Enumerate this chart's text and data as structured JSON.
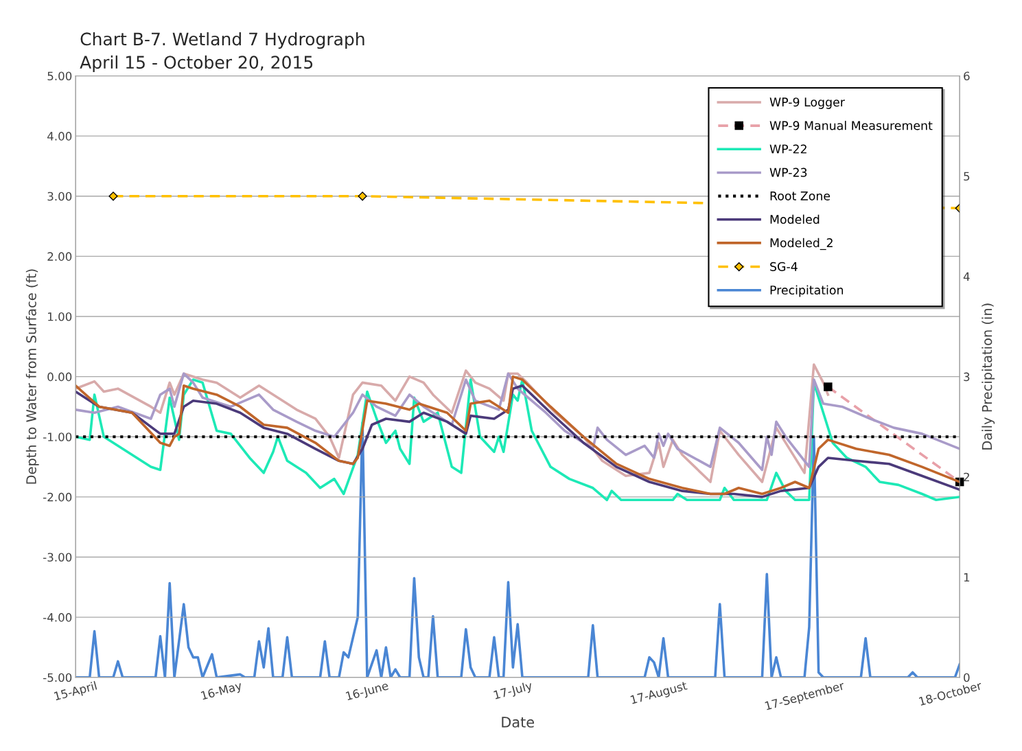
{
  "chart_data": {
    "type": "line",
    "title": "Chart B-7. Wetland 7 Hydrograph",
    "subtitle": "April 15 - October 20, 2015",
    "xlabel": "Date",
    "ylabel": "Depth to Water from Surface (ft)",
    "y2label": "Daily Precipitation (in)",
    "xlim": [
      "2015-04-15",
      "2015-10-20"
    ],
    "xticks": [
      {
        "value": "2015-04-15",
        "label": "15-April"
      },
      {
        "value": "2015-05-16",
        "label": "16-May"
      },
      {
        "value": "2015-06-16",
        "label": "16-June"
      },
      {
        "value": "2015-07-17",
        "label": "17-July"
      },
      {
        "value": "2015-08-17",
        "label": "17-August"
      },
      {
        "value": "2015-09-17",
        "label": "17-September"
      },
      {
        "value": "2015-10-18",
        "label": "18-October"
      }
    ],
    "ylim": [
      -5,
      5
    ],
    "yticks": [
      {
        "value": -5,
        "label": "-5.00"
      },
      {
        "value": -4,
        "label": "-4.00"
      },
      {
        "value": -3,
        "label": "-3.00"
      },
      {
        "value": -2,
        "label": "-2.00"
      },
      {
        "value": -1,
        "label": "-1.00"
      },
      {
        "value": 0,
        "label": "0.00"
      },
      {
        "value": 1,
        "label": "1.00"
      },
      {
        "value": 2,
        "label": "2.00"
      },
      {
        "value": 3,
        "label": "3.00"
      },
      {
        "value": 4,
        "label": "4.00"
      },
      {
        "value": 5,
        "label": "5.00"
      }
    ],
    "y2lim": [
      0,
      6
    ],
    "y2ticks": [
      0,
      1,
      2,
      3,
      4,
      5,
      6
    ],
    "grid": "y",
    "legend": "top right",
    "series": [
      {
        "name": "WP-9 Logger",
        "color": "#d8aaaa",
        "x": [
          "2015-04-15",
          "2015-04-19",
          "2015-04-21",
          "2015-04-24",
          "2015-05-01",
          "2015-05-03",
          "2015-05-05",
          "2015-05-06",
          "2015-05-08",
          "2015-05-12",
          "2015-05-15",
          "2015-05-20",
          "2015-05-24",
          "2015-05-28",
          "2015-06-01",
          "2015-06-05",
          "2015-06-08",
          "2015-06-10",
          "2015-06-13",
          "2015-06-15",
          "2015-06-19",
          "2015-06-22",
          "2015-06-25",
          "2015-06-28",
          "2015-06-30",
          "2015-07-04",
          "2015-07-07",
          "2015-07-09",
          "2015-07-12",
          "2015-07-15",
          "2015-07-16",
          "2015-07-18",
          "2015-07-20",
          "2015-07-26",
          "2015-08-01",
          "2015-08-05",
          "2015-08-10",
          "2015-08-15",
          "2015-08-17",
          "2015-08-18",
          "2015-08-20",
          "2015-08-22",
          "2015-08-28",
          "2015-08-30",
          "2015-09-03",
          "2015-09-08",
          "2015-09-11",
          "2015-09-17",
          "2015-09-19",
          "2015-09-21",
          "2015-09-22"
        ],
        "values": [
          -0.2,
          -0.08,
          -0.25,
          -0.2,
          -0.5,
          -0.6,
          -0.1,
          -0.3,
          0.05,
          -0.05,
          -0.1,
          -0.35,
          -0.15,
          -0.35,
          -0.55,
          -0.7,
          -1.0,
          -1.35,
          -0.3,
          -0.1,
          -0.15,
          -0.4,
          0.0,
          -0.1,
          -0.3,
          -0.6,
          0.1,
          -0.1,
          -0.2,
          -0.4,
          0.05,
          0.05,
          -0.1,
          -0.6,
          -1.0,
          -1.4,
          -1.65,
          -1.6,
          -1.1,
          -1.5,
          -1.05,
          -1.3,
          -1.75,
          -0.9,
          -1.3,
          -1.75,
          -0.85,
          -1.6,
          0.2,
          -0.1,
          -0.3
        ]
      },
      {
        "name": "WP-9 Manual Measurement",
        "color": "#e8a0a8",
        "marker": "square",
        "line_style": "dashed",
        "x": [
          "2015-09-22",
          "2015-10-20"
        ],
        "values": [
          -0.17,
          -1.75
        ]
      },
      {
        "name": "WP-22",
        "color": "#1de9b6",
        "x": [
          "2015-04-15",
          "2015-04-18",
          "2015-04-19",
          "2015-04-21",
          "2015-04-23",
          "2015-04-25",
          "2015-05-01",
          "2015-05-03",
          "2015-05-05",
          "2015-05-06",
          "2015-05-07",
          "2015-05-08",
          "2015-05-10",
          "2015-05-12",
          "2015-05-15",
          "2015-05-18",
          "2015-05-22",
          "2015-05-25",
          "2015-05-27",
          "2015-05-28",
          "2015-05-30",
          "2015-06-03",
          "2015-06-06",
          "2015-06-09",
          "2015-06-11",
          "2015-06-14",
          "2015-06-16",
          "2015-06-18",
          "2015-06-20",
          "2015-06-22",
          "2015-06-23",
          "2015-06-25",
          "2015-06-26",
          "2015-06-28",
          "2015-07-01",
          "2015-07-04",
          "2015-07-06",
          "2015-07-08",
          "2015-07-10",
          "2015-07-13",
          "2015-07-14",
          "2015-07-15",
          "2015-07-17",
          "2015-07-18",
          "2015-07-19",
          "2015-07-21",
          "2015-07-25",
          "2015-07-29",
          "2015-08-03",
          "2015-08-06",
          "2015-08-07",
          "2015-08-09",
          "2015-08-20",
          "2015-08-21",
          "2015-08-23",
          "2015-08-30",
          "2015-08-31",
          "2015-09-02",
          "2015-09-09",
          "2015-09-11",
          "2015-09-13",
          "2015-09-15",
          "2015-09-18",
          "2015-09-19",
          "2015-09-21",
          "2015-09-23",
          "2015-09-26",
          "2015-09-30",
          "2015-10-03",
          "2015-10-07",
          "2015-10-12",
          "2015-10-15",
          "2015-10-20"
        ],
        "values": [
          -1.0,
          -1.05,
          -0.3,
          -1.0,
          -1.1,
          -1.2,
          -1.5,
          -1.55,
          -0.35,
          -0.7,
          -1.05,
          -0.3,
          -0.05,
          -0.1,
          -0.9,
          -0.95,
          -1.35,
          -1.6,
          -1.25,
          -1.0,
          -1.4,
          -1.6,
          -1.85,
          -1.7,
          -1.95,
          -1.3,
          -0.25,
          -0.7,
          -1.1,
          -0.9,
          -1.2,
          -1.45,
          -0.35,
          -0.75,
          -0.6,
          -1.5,
          -1.6,
          -0.05,
          -1.0,
          -1.25,
          -1.0,
          -1.25,
          -0.3,
          -0.4,
          -0.05,
          -0.9,
          -1.5,
          -1.7,
          -1.85,
          -2.05,
          -1.9,
          -2.05,
          -2.05,
          -1.95,
          -2.05,
          -2.05,
          -1.85,
          -2.05,
          -2.05,
          -1.6,
          -1.9,
          -2.05,
          -2.05,
          -0.1,
          -0.6,
          -1.1,
          -1.35,
          -1.5,
          -1.75,
          -1.8,
          -1.95,
          -2.05,
          -2.0
        ]
      },
      {
        "name": "WP-23",
        "color": "#a99bc9",
        "x": [
          "2015-04-15",
          "2015-04-19",
          "2015-04-24",
          "2015-05-01",
          "2015-05-03",
          "2015-05-05",
          "2015-05-06",
          "2015-05-08",
          "2015-05-10",
          "2015-05-12",
          "2015-05-18",
          "2015-05-24",
          "2015-05-27",
          "2015-06-01",
          "2015-06-05",
          "2015-06-09",
          "2015-06-13",
          "2015-06-15",
          "2015-06-18",
          "2015-06-22",
          "2015-06-25",
          "2015-06-28",
          "2015-07-04",
          "2015-07-07",
          "2015-07-09",
          "2015-07-14",
          "2015-07-16",
          "2015-07-18",
          "2015-07-24",
          "2015-07-28",
          "2015-08-03",
          "2015-08-04",
          "2015-08-06",
          "2015-08-10",
          "2015-08-14",
          "2015-08-16",
          "2015-08-17",
          "2015-08-18",
          "2015-08-19",
          "2015-08-21",
          "2015-08-28",
          "2015-08-30",
          "2015-09-03",
          "2015-09-08",
          "2015-09-09",
          "2015-09-10",
          "2015-09-11",
          "2015-09-13",
          "2015-09-17",
          "2015-09-18",
          "2015-09-19",
          "2015-09-21",
          "2015-09-25",
          "2015-10-01",
          "2015-10-06",
          "2015-10-12",
          "2015-10-20"
        ],
        "values": [
          -0.55,
          -0.6,
          -0.5,
          -0.7,
          -0.3,
          -0.2,
          -0.5,
          0.05,
          -0.1,
          -0.35,
          -0.5,
          -0.3,
          -0.55,
          -0.75,
          -0.9,
          -1.0,
          -0.6,
          -0.3,
          -0.5,
          -0.65,
          -0.3,
          -0.5,
          -0.8,
          -0.05,
          -0.4,
          -0.55,
          0.05,
          -0.2,
          -0.6,
          -0.9,
          -1.2,
          -0.85,
          -1.05,
          -1.3,
          -1.15,
          -1.35,
          -0.95,
          -1.15,
          -0.95,
          -1.2,
          -1.5,
          -0.85,
          -1.1,
          -1.55,
          -1.0,
          -1.3,
          -0.75,
          -1.0,
          -1.4,
          -1.5,
          -0.05,
          -0.45,
          -0.5,
          -0.7,
          -0.85,
          -0.95,
          -1.2
        ]
      },
      {
        "name": "Root Zone",
        "color": "#000000",
        "line_style": "dotted",
        "x": [
          "2015-04-15",
          "2015-10-20"
        ],
        "values": [
          -1.0,
          -1.0
        ]
      },
      {
        "name": "Modeled",
        "color": "#4b3a7a",
        "x": [
          "2015-04-15",
          "2015-04-20",
          "2015-04-27",
          "2015-05-03",
          "2015-05-06",
          "2015-05-08",
          "2015-05-10",
          "2015-05-15",
          "2015-05-20",
          "2015-05-25",
          "2015-05-30",
          "2015-06-05",
          "2015-06-10",
          "2015-06-13",
          "2015-06-15",
          "2015-06-17",
          "2015-06-20",
          "2015-06-25",
          "2015-06-28",
          "2015-07-03",
          "2015-07-07",
          "2015-07-08",
          "2015-07-13",
          "2015-07-16",
          "2015-07-17",
          "2015-07-19",
          "2015-07-25",
          "2015-08-01",
          "2015-08-08",
          "2015-08-15",
          "2015-08-22",
          "2015-08-28",
          "2015-09-02",
          "2015-09-08",
          "2015-09-12",
          "2015-09-18",
          "2015-09-20",
          "2015-09-22",
          "2015-09-28",
          "2015-10-05",
          "2015-10-12",
          "2015-10-20"
        ],
        "values": [
          -0.25,
          -0.5,
          -0.6,
          -0.95,
          -0.95,
          -0.5,
          -0.4,
          -0.45,
          -0.6,
          -0.85,
          -0.95,
          -1.2,
          -1.4,
          -1.45,
          -1.2,
          -0.8,
          -0.7,
          -0.75,
          -0.6,
          -0.75,
          -0.95,
          -0.65,
          -0.7,
          -0.55,
          -0.2,
          -0.15,
          -0.6,
          -1.1,
          -1.5,
          -1.75,
          -1.9,
          -1.95,
          -1.95,
          -2.0,
          -1.9,
          -1.85,
          -1.5,
          -1.35,
          -1.4,
          -1.45,
          -1.65,
          -1.88
        ]
      },
      {
        "name": "Modeled_2",
        "color": "#c0662b",
        "x": [
          "2015-04-15",
          "2015-04-20",
          "2015-04-27",
          "2015-05-03",
          "2015-05-05",
          "2015-05-06",
          "2015-05-07",
          "2015-05-08",
          "2015-05-10",
          "2015-05-15",
          "2015-05-20",
          "2015-05-25",
          "2015-05-30",
          "2015-06-05",
          "2015-06-10",
          "2015-06-13",
          "2015-06-14",
          "2015-06-16",
          "2015-06-20",
          "2015-06-25",
          "2015-06-27",
          "2015-07-03",
          "2015-07-07",
          "2015-07-08",
          "2015-07-12",
          "2015-07-16",
          "2015-07-17",
          "2015-07-19",
          "2015-07-25",
          "2015-08-01",
          "2015-08-08",
          "2015-08-15",
          "2015-08-22",
          "2015-08-28",
          "2015-08-31",
          "2015-09-03",
          "2015-09-08",
          "2015-09-12",
          "2015-09-15",
          "2015-09-18",
          "2015-09-20",
          "2015-09-22",
          "2015-09-28",
          "2015-10-05",
          "2015-10-12",
          "2015-10-20"
        ],
        "values": [
          -0.15,
          -0.5,
          -0.6,
          -1.1,
          -1.15,
          -1.0,
          -0.95,
          -0.15,
          -0.2,
          -0.3,
          -0.5,
          -0.8,
          -0.85,
          -1.1,
          -1.4,
          -1.45,
          -1.35,
          -0.4,
          -0.45,
          -0.55,
          -0.45,
          -0.6,
          -0.9,
          -0.45,
          -0.4,
          -0.6,
          0.0,
          -0.05,
          -0.5,
          -1.0,
          -1.45,
          -1.7,
          -1.85,
          -1.95,
          -1.95,
          -1.85,
          -1.95,
          -1.85,
          -1.75,
          -1.85,
          -1.2,
          -1.05,
          -1.2,
          -1.3,
          -1.5,
          -1.75
        ]
      },
      {
        "name": "SG-4",
        "color": "#ffc000",
        "marker": "diamond",
        "line_style": "dashed",
        "x": [
          "2015-04-23",
          "2015-06-15",
          "2015-10-20"
        ],
        "values": [
          3.0,
          3.0,
          2.8
        ]
      },
      {
        "name": "Precipitation",
        "color": "#4a86d4",
        "axis": "y2",
        "x": [
          "2015-04-15",
          "2015-04-18",
          "2015-04-19",
          "2015-04-20",
          "2015-04-23",
          "2015-04-24",
          "2015-04-25",
          "2015-05-02",
          "2015-05-03",
          "2015-05-04",
          "2015-05-05",
          "2015-05-06",
          "2015-05-08",
          "2015-05-09",
          "2015-05-10",
          "2015-05-11",
          "2015-05-12",
          "2015-05-14",
          "2015-05-15",
          "2015-05-20",
          "2015-05-21",
          "2015-05-23",
          "2015-05-24",
          "2015-05-25",
          "2015-05-26",
          "2015-05-27",
          "2015-05-29",
          "2015-05-30",
          "2015-05-31",
          "2015-06-06",
          "2015-06-07",
          "2015-06-08",
          "2015-06-10",
          "2015-06-11",
          "2015-06-12",
          "2015-06-13",
          "2015-06-14",
          "2015-06-15",
          "2015-06-16",
          "2015-06-18",
          "2015-06-19",
          "2015-06-20",
          "2015-06-21",
          "2015-06-22",
          "2015-06-23",
          "2015-06-25",
          "2015-06-26",
          "2015-06-27",
          "2015-06-28",
          "2015-06-29",
          "2015-06-30",
          "2015-07-01",
          "2015-07-06",
          "2015-07-07",
          "2015-07-08",
          "2015-07-09",
          "2015-07-12",
          "2015-07-13",
          "2015-07-14",
          "2015-07-15",
          "2015-07-16",
          "2015-07-17",
          "2015-07-18",
          "2015-07-19",
          "2015-08-02",
          "2015-08-03",
          "2015-08-04",
          "2015-08-14",
          "2015-08-15",
          "2015-08-16",
          "2015-08-17",
          "2015-08-18",
          "2015-08-19",
          "2015-08-29",
          "2015-08-30",
          "2015-08-31",
          "2015-09-08",
          "2015-09-09",
          "2015-09-10",
          "2015-09-11",
          "2015-09-12",
          "2015-09-17",
          "2015-09-18",
          "2015-09-19",
          "2015-09-20",
          "2015-09-21",
          "2015-09-29",
          "2015-09-30",
          "2015-10-01",
          "2015-10-09",
          "2015-10-10",
          "2015-10-11",
          "2015-10-19",
          "2015-10-20"
        ],
        "values": [
          0,
          0,
          0.46,
          0,
          0,
          0.16,
          0,
          0,
          0.41,
          0,
          0.94,
          0,
          0.73,
          0.3,
          0.2,
          0.2,
          0,
          0.23,
          0,
          0.03,
          0,
          0,
          0.36,
          0.1,
          0.49,
          0,
          0,
          0.4,
          0,
          0,
          0.36,
          0,
          0,
          0.25,
          0.2,
          0.4,
          0.6,
          2.54,
          0,
          0.27,
          0,
          0.3,
          0,
          0.08,
          0,
          0,
          0.99,
          0.2,
          0,
          0,
          0.61,
          0,
          0,
          0.48,
          0.1,
          0,
          0,
          0.4,
          0,
          0,
          0.95,
          0.1,
          0.53,
          0,
          0,
          0.52,
          0,
          0,
          0.2,
          0.15,
          0,
          0.39,
          0,
          0,
          0.73,
          0,
          0,
          1.03,
          0,
          0.2,
          0,
          0,
          0.5,
          2.4,
          0.05,
          0,
          0,
          0.39,
          0,
          0,
          0.05,
          0,
          0,
          0.13
        ]
      }
    ]
  }
}
